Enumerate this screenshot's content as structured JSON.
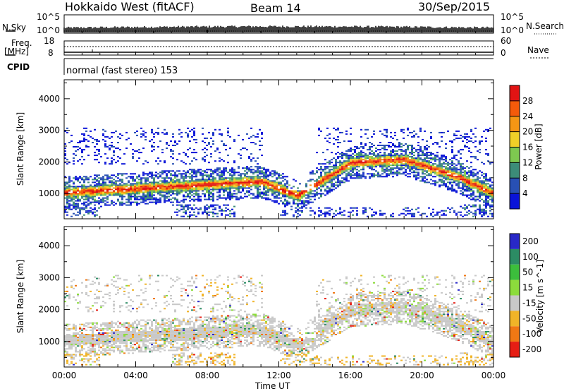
{
  "header": {
    "title": "Hokkaido West (fitACF)",
    "beam": "Beam 14",
    "date": "30/Sep/2015"
  },
  "summary": {
    "nsky_label": "N.Sky",
    "nsky_top": "10^5",
    "nsky_bottom": "10^0",
    "nsearch_label": "N.Search",
    "nsearch_top": "10^5",
    "nsearch_bottom": "10^0",
    "freq_label_1": "Freq.",
    "freq_label_2": "[MHz]",
    "freq_top": "18",
    "freq_bottom": "8",
    "nave_label": "Nave",
    "nave_top": "60",
    "nave_bottom": "0",
    "cpid_label": "CPID",
    "cpid_value": "normal (fast stereo) 153"
  },
  "chart_data": [
    {
      "type": "heatmap",
      "name": "power-panel",
      "xlabel": "Time UT",
      "ylabel": "Slant Range [km]",
      "yticks": [
        1000,
        2000,
        3000,
        4000
      ],
      "ylim": [
        200,
        4600
      ],
      "xticks": [
        "00:00",
        "04:00",
        "08:00",
        "12:00",
        "16:00",
        "20:00",
        "00:00"
      ],
      "xlim_hours": [
        0,
        24
      ],
      "colorbar": {
        "label": "Power [dB]",
        "ticks": [
          "4",
          "8",
          "12",
          "16",
          "20",
          "24",
          "28"
        ],
        "colors": [
          "#0a14d8",
          "#2850b4",
          "#3c8c78",
          "#7ec850",
          "#f0d028",
          "#f59614",
          "#f55a0a",
          "#e11414"
        ]
      },
      "echo_bands": [
        {
          "t": [
            0,
            11,
            13,
            16,
            19,
            22,
            24
          ],
          "range_km": [
            1000,
            1350,
            900,
            1950,
            2050,
            1500,
            950
          ]
        }
      ]
    },
    {
      "type": "heatmap",
      "name": "velocity-panel",
      "xlabel": "Time UT",
      "ylabel": "Slant Range [km]",
      "yticks": [
        1000,
        2000,
        3000,
        4000
      ],
      "ylim": [
        200,
        4600
      ],
      "xticks": [
        "00:00",
        "04:00",
        "08:00",
        "12:00",
        "16:00",
        "20:00",
        "00:00"
      ],
      "xlim_hours": [
        0,
        24
      ],
      "colorbar": {
        "label": "Velocity [m s^-1]",
        "ticks": [
          "200",
          "100",
          "50",
          "15",
          "-15",
          "-50",
          "-100",
          "-200"
        ],
        "colors": [
          "#2828c8",
          "#2c8c64",
          "#3cbe3c",
          "#8cdc3c",
          "#c8c8c8",
          "#f0b428",
          "#f07814",
          "#e61e14"
        ]
      }
    }
  ],
  "colors": {
    "axis": "#000000",
    "ground_scatter": "#c8c8c8"
  }
}
